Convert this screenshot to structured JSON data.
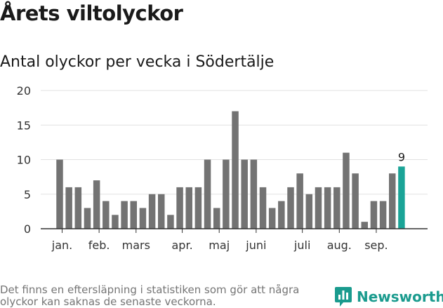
{
  "title": "Årets viltolyckor",
  "subtitle": "Antal olyckor per vecka i Södertälje",
  "footnote": "Det finns en eftersläpning i statistiken som gör att några olyckor kan saknas de senaste veckorna.",
  "brand": {
    "name": "Newsworthy",
    "icon": "newsworthy-logo-icon",
    "color": "#1a9b8e"
  },
  "chart_data": {
    "type": "bar",
    "title": "Antal olyckor per vecka i Södertälje",
    "xlabel": "",
    "ylabel": "",
    "ylim": [
      0,
      20
    ],
    "yticks": [
      0,
      5,
      10,
      15,
      20
    ],
    "grid": true,
    "bar_color": "#737373",
    "highlight_color": "#1aa497",
    "highlight_index": 37,
    "highlight_label": "9",
    "weeks": [
      1,
      2,
      3,
      4,
      5,
      6,
      7,
      8,
      9,
      10,
      11,
      12,
      13,
      14,
      15,
      16,
      17,
      18,
      19,
      20,
      21,
      22,
      23,
      24,
      25,
      26,
      27,
      28,
      29,
      30,
      31,
      32,
      33,
      34,
      35,
      36,
      37,
      38
    ],
    "values": [
      10,
      6,
      6,
      3,
      7,
      4,
      2,
      4,
      4,
      3,
      5,
      5,
      2,
      6,
      6,
      6,
      10,
      3,
      10,
      17,
      10,
      10,
      6,
      3,
      4,
      6,
      8,
      5,
      6,
      6,
      6,
      11,
      8,
      1,
      4,
      4,
      8,
      9
    ],
    "month_labels": [
      {
        "label": "jan.",
        "index": 0
      },
      {
        "label": "feb.",
        "index": 4
      },
      {
        "label": "mars",
        "index": 8
      },
      {
        "label": "apr.",
        "index": 13
      },
      {
        "label": "maj",
        "index": 17
      },
      {
        "label": "juni",
        "index": 21
      },
      {
        "label": "juli",
        "index": 26
      },
      {
        "label": "aug.",
        "index": 30
      },
      {
        "label": "sep.",
        "index": 34
      }
    ]
  }
}
